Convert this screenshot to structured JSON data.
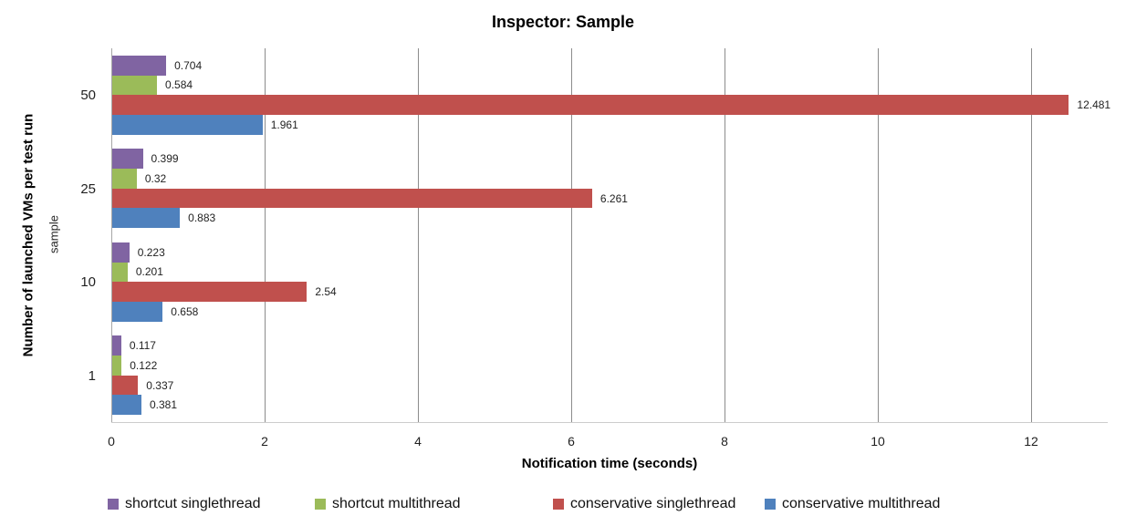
{
  "chart_data": {
    "type": "bar",
    "orientation": "horizontal",
    "title": "Inspector: Sample",
    "xlabel": "Notification time (seconds)",
    "ylabel": "Number of launched VMs per test run",
    "ylabel_secondary": "sample",
    "categories": [
      "50",
      "25",
      "10",
      "1"
    ],
    "series": [
      {
        "name": "shortcut singlethread",
        "color": "#8064A2",
        "values": [
          0.704,
          0.399,
          0.223,
          0.117
        ]
      },
      {
        "name": "shortcut multithread",
        "color": "#9BBB59",
        "values": [
          0.584,
          0.32,
          0.201,
          0.122
        ]
      },
      {
        "name": "conservative singlethread",
        "color": "#C0504D",
        "values": [
          12.481,
          6.261,
          2.54,
          0.337
        ]
      },
      {
        "name": "conservative multithread",
        "color": "#4F81BD",
        "values": [
          1.961,
          0.883,
          0.658,
          0.381
        ]
      }
    ],
    "xlim": [
      0,
      13
    ],
    "xticks": [
      0,
      2,
      4,
      6,
      8,
      10,
      12
    ],
    "grid": "vertical",
    "legend_position": "bottom",
    "data_labels": true
  }
}
